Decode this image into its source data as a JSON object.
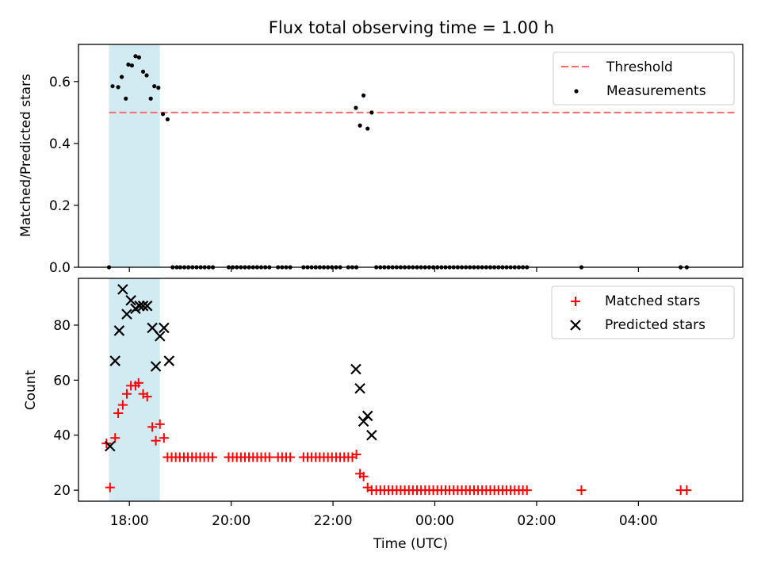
{
  "title": "Flux total observing time = 1.00 h",
  "colors": {
    "threshold": "#ff6b6b",
    "measurements": "#000000",
    "matched": "#ff0000",
    "predicted": "#000000",
    "highlight": "#add8e6"
  },
  "chart_data": [
    {
      "type": "scatter",
      "ylabel": "Matched/Predicted stars",
      "x_unit": "hours since 00:00 UTC of the first day",
      "xlim": [
        17.0,
        30.05
      ],
      "ylim": [
        0.0,
        0.72
      ],
      "yticks": [
        0.0,
        0.2,
        0.4,
        0.6
      ],
      "ytick_labels": [
        "0.0",
        "0.2",
        "0.4",
        "0.6"
      ],
      "highlight_span": [
        17.6,
        18.6
      ],
      "legend": {
        "position": "upper right",
        "entries": [
          {
            "label": "Threshold",
            "kind": "dashed-line"
          },
          {
            "label": "Measurements",
            "kind": "dot"
          }
        ]
      },
      "threshold": {
        "name": "Threshold",
        "y": 0.5,
        "x_range": [
          17.6,
          29.9
        ]
      },
      "series": [
        {
          "name": "Measurements",
          "points": [
            [
              17.6,
              0.0
            ],
            [
              17.67,
              0.585
            ],
            [
              17.78,
              0.582
            ],
            [
              17.85,
              0.615
            ],
            [
              17.93,
              0.545
            ],
            [
              17.98,
              0.655
            ],
            [
              18.05,
              0.652
            ],
            [
              18.12,
              0.682
            ],
            [
              18.19,
              0.678
            ],
            [
              18.27,
              0.632
            ],
            [
              18.34,
              0.62
            ],
            [
              18.42,
              0.545
            ],
            [
              18.49,
              0.585
            ],
            [
              18.57,
              0.58
            ],
            [
              18.66,
              0.495
            ],
            [
              18.75,
              0.478
            ],
            [
              18.85,
              0.0
            ],
            [
              18.93,
              0.0
            ],
            [
              19.0,
              0.0
            ],
            [
              19.08,
              0.0
            ],
            [
              19.16,
              0.0
            ],
            [
              19.24,
              0.0
            ],
            [
              19.32,
              0.0
            ],
            [
              19.4,
              0.0
            ],
            [
              19.48,
              0.0
            ],
            [
              19.56,
              0.0
            ],
            [
              19.64,
              0.0
            ],
            [
              19.95,
              0.0
            ],
            [
              20.03,
              0.0
            ],
            [
              20.11,
              0.0
            ],
            [
              20.19,
              0.0
            ],
            [
              20.27,
              0.0
            ],
            [
              20.35,
              0.0
            ],
            [
              20.43,
              0.0
            ],
            [
              20.51,
              0.0
            ],
            [
              20.59,
              0.0
            ],
            [
              20.67,
              0.0
            ],
            [
              20.75,
              0.0
            ],
            [
              20.92,
              0.0
            ],
            [
              21.0,
              0.0
            ],
            [
              21.08,
              0.0
            ],
            [
              21.16,
              0.0
            ],
            [
              21.42,
              0.0
            ],
            [
              21.5,
              0.0
            ],
            [
              21.58,
              0.0
            ],
            [
              21.66,
              0.0
            ],
            [
              21.74,
              0.0
            ],
            [
              21.82,
              0.0
            ],
            [
              21.9,
              0.0
            ],
            [
              21.98,
              0.0
            ],
            [
              22.06,
              0.0
            ],
            [
              22.14,
              0.0
            ],
            [
              22.3,
              0.0
            ],
            [
              22.38,
              0.0
            ],
            [
              22.46,
              0.0
            ],
            [
              22.45,
              0.515
            ],
            [
              22.53,
              0.458
            ],
            [
              22.6,
              0.555
            ],
            [
              22.68,
              0.448
            ],
            [
              22.76,
              0.5
            ],
            [
              22.85,
              0.0
            ],
            [
              22.93,
              0.0
            ],
            [
              23.01,
              0.0
            ],
            [
              23.09,
              0.0
            ],
            [
              23.17,
              0.0
            ],
            [
              23.25,
              0.0
            ],
            [
              23.33,
              0.0
            ],
            [
              23.41,
              0.0
            ],
            [
              23.49,
              0.0
            ],
            [
              23.57,
              0.0
            ],
            [
              23.65,
              0.0
            ],
            [
              23.73,
              0.0
            ],
            [
              23.81,
              0.0
            ],
            [
              23.89,
              0.0
            ],
            [
              23.97,
              0.0
            ],
            [
              24.05,
              0.0
            ],
            [
              24.13,
              0.0
            ],
            [
              24.21,
              0.0
            ],
            [
              24.29,
              0.0
            ],
            [
              24.37,
              0.0
            ],
            [
              24.45,
              0.0
            ],
            [
              24.53,
              0.0
            ],
            [
              24.61,
              0.0
            ],
            [
              24.69,
              0.0
            ],
            [
              24.77,
              0.0
            ],
            [
              24.85,
              0.0
            ],
            [
              24.93,
              0.0
            ],
            [
              25.01,
              0.0
            ],
            [
              25.09,
              0.0
            ],
            [
              25.17,
              0.0
            ],
            [
              25.25,
              0.0
            ],
            [
              25.33,
              0.0
            ],
            [
              25.41,
              0.0
            ],
            [
              25.49,
              0.0
            ],
            [
              25.57,
              0.0
            ],
            [
              25.65,
              0.0
            ],
            [
              25.73,
              0.0
            ],
            [
              25.81,
              0.0
            ],
            [
              26.88,
              0.0
            ],
            [
              28.83,
              0.0
            ],
            [
              28.95,
              0.0
            ]
          ]
        }
      ]
    },
    {
      "type": "scatter",
      "xlabel": "Time (UTC)",
      "ylabel": "Count",
      "x_unit": "hours since 00:00 UTC of the first day",
      "xlim": [
        17.0,
        30.05
      ],
      "ylim": [
        16.0,
        97.0
      ],
      "xticks": [
        18,
        20,
        22,
        24,
        26,
        28
      ],
      "xtick_labels": [
        "18:00",
        "20:00",
        "22:00",
        "00:00",
        "02:00",
        "04:00"
      ],
      "yticks": [
        20,
        40,
        60,
        80
      ],
      "ytick_labels": [
        "20",
        "40",
        "60",
        "80"
      ],
      "highlight_span": [
        17.6,
        18.6
      ],
      "legend": {
        "position": "upper right",
        "entries": [
          {
            "label": "Matched stars",
            "kind": "plus"
          },
          {
            "label": "Predicted stars",
            "kind": "x"
          }
        ]
      },
      "series": [
        {
          "name": "Matched stars",
          "marker": "plus",
          "points": [
            [
              17.55,
              37
            ],
            [
              17.62,
              21
            ],
            [
              17.72,
              39
            ],
            [
              17.78,
              48
            ],
            [
              17.87,
              51
            ],
            [
              17.95,
              55
            ],
            [
              18.03,
              58
            ],
            [
              18.12,
              58
            ],
            [
              18.18,
              59
            ],
            [
              18.27,
              55
            ],
            [
              18.35,
              54
            ],
            [
              18.45,
              43
            ],
            [
              18.52,
              38
            ],
            [
              18.6,
              44
            ],
            [
              18.68,
              39
            ],
            [
              18.75,
              32
            ],
            [
              18.83,
              32
            ],
            [
              18.91,
              32
            ],
            [
              18.99,
              32
            ],
            [
              19.07,
              32
            ],
            [
              19.15,
              32
            ],
            [
              19.23,
              32
            ],
            [
              19.31,
              32
            ],
            [
              19.39,
              32
            ],
            [
              19.47,
              32
            ],
            [
              19.55,
              32
            ],
            [
              19.63,
              32
            ],
            [
              19.95,
              32
            ],
            [
              20.03,
              32
            ],
            [
              20.11,
              32
            ],
            [
              20.19,
              32
            ],
            [
              20.27,
              32
            ],
            [
              20.35,
              32
            ],
            [
              20.43,
              32
            ],
            [
              20.51,
              32
            ],
            [
              20.59,
              32
            ],
            [
              20.67,
              32
            ],
            [
              20.75,
              32
            ],
            [
              20.92,
              32
            ],
            [
              21.0,
              32
            ],
            [
              21.08,
              32
            ],
            [
              21.16,
              32
            ],
            [
              21.42,
              32
            ],
            [
              21.5,
              32
            ],
            [
              21.58,
              32
            ],
            [
              21.66,
              32
            ],
            [
              21.74,
              32
            ],
            [
              21.82,
              32
            ],
            [
              21.9,
              32
            ],
            [
              21.98,
              32
            ],
            [
              22.06,
              32
            ],
            [
              22.14,
              32
            ],
            [
              22.22,
              32
            ],
            [
              22.3,
              32
            ],
            [
              22.38,
              32
            ],
            [
              22.46,
              33
            ],
            [
              22.53,
              26
            ],
            [
              22.6,
              25
            ],
            [
              22.68,
              21
            ],
            [
              22.76,
              20
            ],
            [
              22.85,
              20
            ],
            [
              22.93,
              20
            ],
            [
              23.01,
              20
            ],
            [
              23.09,
              20
            ],
            [
              23.17,
              20
            ],
            [
              23.25,
              20
            ],
            [
              23.33,
              20
            ],
            [
              23.41,
              20
            ],
            [
              23.49,
              20
            ],
            [
              23.57,
              20
            ],
            [
              23.65,
              20
            ],
            [
              23.73,
              20
            ],
            [
              23.81,
              20
            ],
            [
              23.89,
              20
            ],
            [
              23.97,
              20
            ],
            [
              24.05,
              20
            ],
            [
              24.13,
              20
            ],
            [
              24.21,
              20
            ],
            [
              24.29,
              20
            ],
            [
              24.37,
              20
            ],
            [
              24.45,
              20
            ],
            [
              24.53,
              20
            ],
            [
              24.61,
              20
            ],
            [
              24.69,
              20
            ],
            [
              24.77,
              20
            ],
            [
              24.85,
              20
            ],
            [
              24.93,
              20
            ],
            [
              25.01,
              20
            ],
            [
              25.09,
              20
            ],
            [
              25.17,
              20
            ],
            [
              25.25,
              20
            ],
            [
              25.33,
              20
            ],
            [
              25.41,
              20
            ],
            [
              25.49,
              20
            ],
            [
              25.57,
              20
            ],
            [
              25.65,
              20
            ],
            [
              25.73,
              20
            ],
            [
              25.81,
              20
            ],
            [
              26.88,
              20
            ],
            [
              28.83,
              20
            ],
            [
              28.95,
              20
            ]
          ]
        },
        {
          "name": "Predicted stars",
          "marker": "x",
          "points": [
            [
              17.62,
              36
            ],
            [
              17.72,
              67
            ],
            [
              17.8,
              78
            ],
            [
              17.87,
              93
            ],
            [
              17.95,
              84
            ],
            [
              18.03,
              89
            ],
            [
              18.12,
              86
            ],
            [
              18.2,
              87
            ],
            [
              18.27,
              87
            ],
            [
              18.35,
              87
            ],
            [
              18.45,
              79
            ],
            [
              18.52,
              65
            ],
            [
              18.6,
              76
            ],
            [
              18.68,
              79
            ],
            [
              18.78,
              67
            ],
            [
              22.45,
              64
            ],
            [
              22.53,
              57
            ],
            [
              22.6,
              45
            ],
            [
              22.68,
              47
            ],
            [
              22.76,
              40
            ]
          ]
        }
      ]
    }
  ]
}
